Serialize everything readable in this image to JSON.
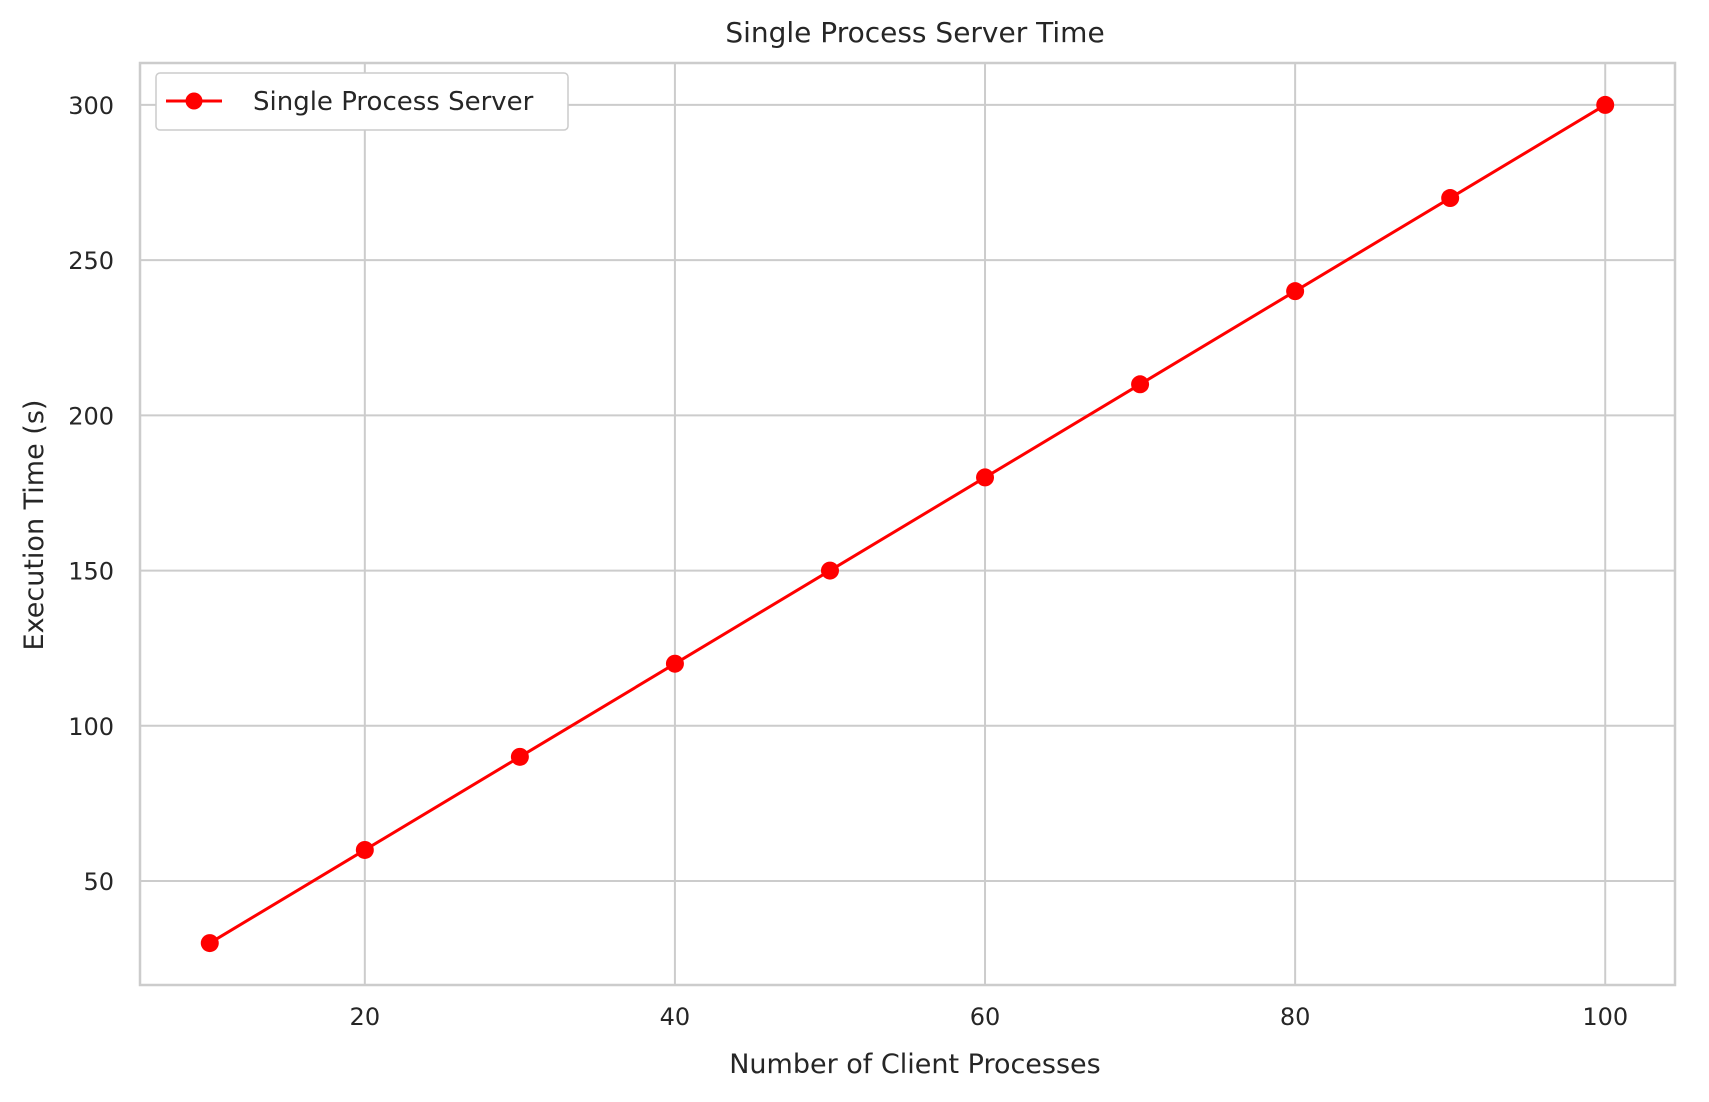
{
  "chart_data": {
    "type": "line",
    "title": "Single Process Server Time",
    "xlabel": "Number of Client Processes",
    "ylabel": "Execution Time (s)",
    "x": [
      10,
      20,
      30,
      40,
      50,
      60,
      70,
      80,
      90,
      100
    ],
    "series": [
      {
        "name": "Single Process Server",
        "values": [
          30,
          60,
          90,
          120,
          150,
          180,
          210,
          240,
          270,
          300
        ],
        "color": "#ff0000",
        "marker": "circle"
      }
    ],
    "xlim": [
      5.5,
      104.5
    ],
    "ylim": [
      16.5,
      313.5
    ],
    "xticks": [
      20,
      40,
      60,
      80,
      100
    ],
    "yticks": [
      50,
      100,
      150,
      200,
      250,
      300
    ],
    "grid": true,
    "legend": "upper-left",
    "grid_color": "#cccccc",
    "axes_edge_color": "#cccccc"
  }
}
